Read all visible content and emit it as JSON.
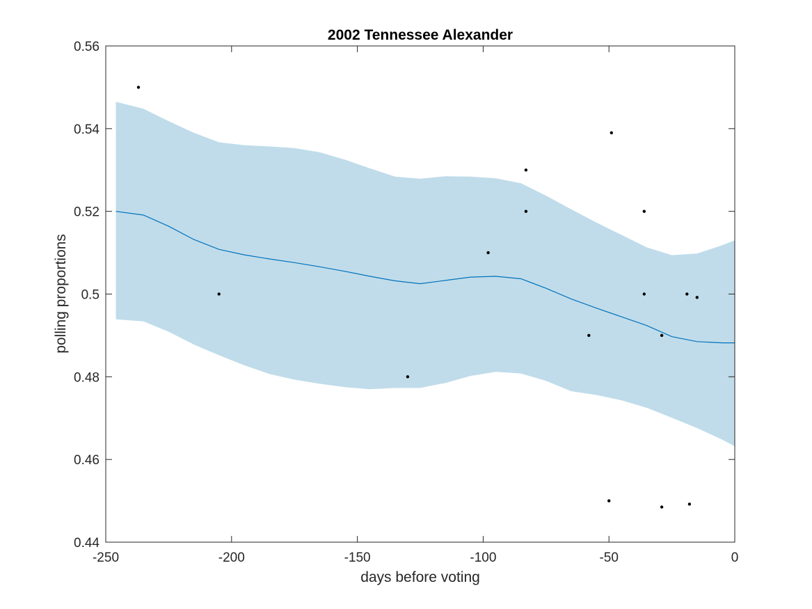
{
  "chart_data": {
    "type": "scatter",
    "title": "2002 Tennessee Alexander",
    "xlabel": "days before voting",
    "ylabel": "polling proportions",
    "xlim": [
      -250,
      0
    ],
    "ylim": [
      0.44,
      0.56
    ],
    "xticks": [
      -250,
      -200,
      -150,
      -100,
      -50,
      0
    ],
    "xtick_labels": [
      "-250",
      "-200",
      "-150",
      "-100",
      "-50",
      "0"
    ],
    "yticks": [
      0.44,
      0.46,
      0.48,
      0.5,
      0.52,
      0.54,
      0.56
    ],
    "ytick_labels": [
      "0.44",
      "0.46",
      "0.48",
      "0.5",
      "0.52",
      "0.54",
      "0.56"
    ],
    "grid": false,
    "legend": "none",
    "colors": {
      "band": "#c0dcea",
      "line": "#0072bd",
      "points": "#000000",
      "axes": "#262626"
    },
    "points": [
      {
        "x": -237,
        "y": 0.55
      },
      {
        "x": -205,
        "y": 0.5
      },
      {
        "x": -130,
        "y": 0.48
      },
      {
        "x": -98,
        "y": 0.51
      },
      {
        "x": -83,
        "y": 0.53
      },
      {
        "x": -83,
        "y": 0.52
      },
      {
        "x": -58,
        "y": 0.49
      },
      {
        "x": -50,
        "y": 0.45
      },
      {
        "x": -49,
        "y": 0.539
      },
      {
        "x": -36,
        "y": 0.52
      },
      {
        "x": -36,
        "y": 0.5
      },
      {
        "x": -29,
        "y": 0.49
      },
      {
        "x": -29,
        "y": 0.4485
      },
      {
        "x": -19,
        "y": 0.5
      },
      {
        "x": -18,
        "y": 0.4492
      },
      {
        "x": -15,
        "y": 0.4992
      }
    ],
    "mean_line": {
      "x": [
        -246,
        -235,
        -225,
        -215,
        -205,
        -195,
        -185,
        -175,
        -165,
        -155,
        -145,
        -135,
        -125,
        -115,
        -105,
        -95,
        -85,
        -75,
        -65,
        -55,
        -45,
        -35,
        -25,
        -15,
        -5,
        0
      ],
      "y": [
        0.52,
        0.5191,
        0.5164,
        0.5132,
        0.5108,
        0.5095,
        0.5085,
        0.5076,
        0.5066,
        0.5055,
        0.5043,
        0.5032,
        0.5025,
        0.5033,
        0.5041,
        0.5043,
        0.5037,
        0.5014,
        0.4988,
        0.4966,
        0.4945,
        0.4924,
        0.4897,
        0.4885,
        0.4882,
        0.4882
      ]
    },
    "band": {
      "x": [
        -246,
        -235,
        -225,
        -215,
        -205,
        -195,
        -185,
        -175,
        -165,
        -155,
        -145,
        -135,
        -125,
        -115,
        -105,
        -95,
        -85,
        -75,
        -65,
        -55,
        -45,
        -35,
        -25,
        -15,
        -5,
        0
      ],
      "upper": [
        0.5465,
        0.5448,
        0.5418,
        0.539,
        0.5367,
        0.536,
        0.5357,
        0.5353,
        0.5343,
        0.5325,
        0.5304,
        0.5284,
        0.5279,
        0.5285,
        0.5284,
        0.528,
        0.5268,
        0.5238,
        0.5205,
        0.5173,
        0.5143,
        0.5113,
        0.5094,
        0.5098,
        0.5118,
        0.513
      ],
      "lower": [
        0.4939,
        0.4934,
        0.4909,
        0.4878,
        0.4852,
        0.4828,
        0.4807,
        0.4793,
        0.4783,
        0.4775,
        0.477,
        0.4773,
        0.4773,
        0.4785,
        0.4802,
        0.4812,
        0.4808,
        0.479,
        0.4765,
        0.4756,
        0.4743,
        0.4725,
        0.4701,
        0.4676,
        0.4648,
        0.4632
      ]
    }
  }
}
